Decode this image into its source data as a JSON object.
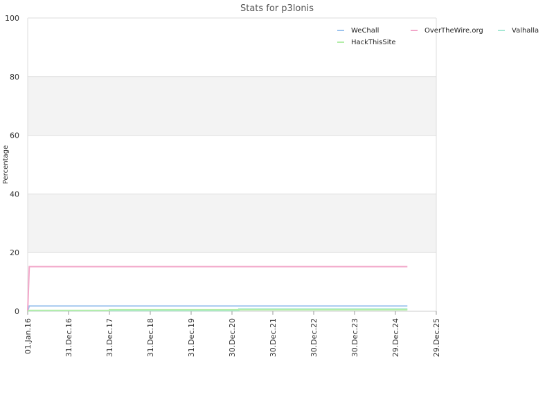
{
  "chart_data": {
    "type": "line",
    "title": "Stats for p3lonis",
    "xlabel": "",
    "ylabel": "Percentage",
    "x_ticks": [
      "01.Jan.16",
      "31.Dec.16",
      "31.Dec.17",
      "31.Dec.18",
      "31.Dec.19",
      "30.Dec.20",
      "30.Dec.21",
      "30.Dec.22",
      "30.Dec.23",
      "29.Dec.24",
      "29.Dec.25"
    ],
    "xlim": [
      "2016-01-01",
      "2025-12-29"
    ],
    "ylim": [
      0,
      100
    ],
    "y_ticks": [
      "0",
      "20",
      "40",
      "60",
      "80",
      "100"
    ],
    "grid": true,
    "legend_position": "top-right",
    "series": [
      {
        "name": "WeChall",
        "color": "#9cc3ee",
        "x": [
          "2016-01-01",
          "2016-01-15",
          "2025-04-15"
        ],
        "y": [
          0,
          1.8,
          1.8
        ]
      },
      {
        "name": "OverTheWire.org",
        "color": "#f2a6c9",
        "x": [
          "2016-01-01",
          "2016-01-15",
          "2025-04-15"
        ],
        "y": [
          0,
          15.2,
          15.2
        ]
      },
      {
        "name": "Valhalla",
        "color": "#a6e8d4",
        "x": [
          "2016-01-01",
          "2016-01-15",
          "2021-03-01",
          "2021-03-01",
          "2025-04-15"
        ],
        "y": [
          0,
          0.2,
          0.2,
          0.8,
          0.8
        ]
      },
      {
        "name": "HackThisSite",
        "color": "#b3eda8",
        "x": [
          "2016-01-01",
          "2016-01-15",
          "2017-12-31",
          "2017-12-31",
          "2025-04-15"
        ],
        "y": [
          0,
          0.3,
          0.3,
          0.5,
          0.5
        ]
      }
    ]
  }
}
